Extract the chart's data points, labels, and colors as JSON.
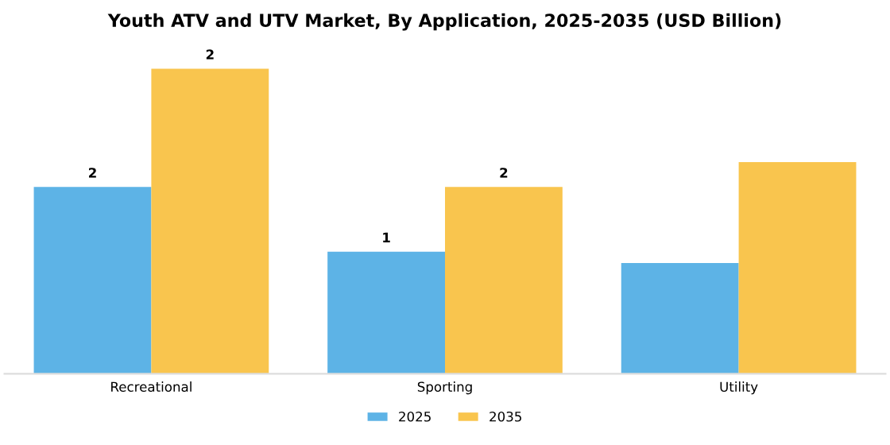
{
  "chart_data": {
    "type": "bar",
    "title": "Youth ATV and UTV Market, By Application, 2025-2035 (USD Billion)",
    "categories": [
      "Recreational",
      "Sporting",
      "Utility"
    ],
    "tick_labels": "x",
    "legend": "bottom",
    "grid": false,
    "series": [
      {
        "name": "2025",
        "color": "#5db3e6",
        "values": [
          1.5,
          0.98,
          0.89
        ],
        "value_labels": [
          "2",
          "1",
          null
        ]
      },
      {
        "name": "2035",
        "color": "#f9c54e",
        "values": [
          2.45,
          1.5,
          1.7
        ],
        "value_labels": [
          "2",
          "2",
          null
        ]
      }
    ]
  }
}
